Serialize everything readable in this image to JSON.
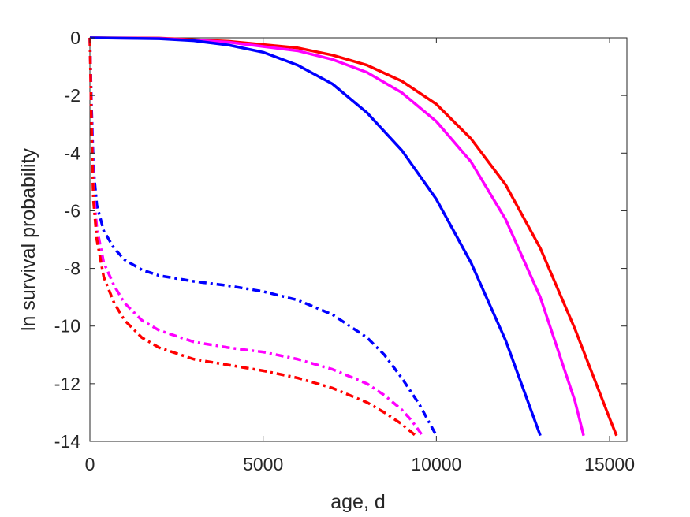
{
  "chart_data": {
    "type": "line",
    "title": "",
    "xlabel": "age, d",
    "ylabel": "ln survival probability",
    "xlim": [
      0,
      15500
    ],
    "ylim": [
      -14,
      0
    ],
    "xticks": [
      0,
      5000,
      10000,
      15000
    ],
    "xtick_labels": [
      "0",
      "5000",
      "10000",
      "15000"
    ],
    "yticks": [
      0,
      -2,
      -4,
      -6,
      -8,
      -10,
      -12,
      -14
    ],
    "ytick_labels": [
      "0",
      "-2",
      "-4",
      "-6",
      "-8",
      "-10",
      "-12",
      "-14"
    ],
    "grid": false,
    "legend": "none",
    "series": [
      {
        "color": "#ff0000",
        "style": "solid",
        "x": [
          0,
          2000,
          4000,
          6000,
          7000,
          8000,
          9000,
          10000,
          11000,
          12000,
          13000,
          14000,
          15000,
          15200
        ],
        "y": [
          0,
          -0.01,
          -0.12,
          -0.35,
          -0.6,
          -0.95,
          -1.5,
          -2.3,
          -3.5,
          -5.1,
          -7.3,
          -10.1,
          -13.2,
          -13.8
        ]
      },
      {
        "color": "#ff00ff",
        "style": "solid",
        "x": [
          0,
          2000,
          4000,
          6000,
          7000,
          8000,
          9000,
          10000,
          11000,
          12000,
          13000,
          14000,
          14250
        ],
        "y": [
          0,
          -0.02,
          -0.15,
          -0.45,
          -0.75,
          -1.2,
          -1.9,
          -2.9,
          -4.3,
          -6.3,
          -9.0,
          -12.6,
          -13.8
        ]
      },
      {
        "color": "#0000ff",
        "style": "solid",
        "x": [
          0,
          2000,
          3000,
          4000,
          5000,
          6000,
          7000,
          8000,
          9000,
          10000,
          11000,
          12000,
          13000
        ],
        "y": [
          0,
          -0.03,
          -0.1,
          -0.25,
          -0.5,
          -0.95,
          -1.6,
          -2.6,
          -3.9,
          -5.6,
          -7.8,
          -10.5,
          -13.8
        ]
      },
      {
        "color": "#0000ff",
        "style": "dashdot",
        "x": [
          0,
          50,
          100,
          200,
          400,
          700,
          1000,
          1500,
          2000,
          2500,
          3000,
          4000,
          5000,
          6000,
          7000,
          8000,
          8500,
          9000,
          9500,
          10000
        ],
        "y": [
          0,
          -2.5,
          -4.5,
          -5.8,
          -6.7,
          -7.3,
          -7.7,
          -8.05,
          -8.25,
          -8.35,
          -8.45,
          -8.6,
          -8.8,
          -9.1,
          -9.6,
          -10.4,
          -11.0,
          -11.8,
          -12.7,
          -13.8
        ]
      },
      {
        "color": "#ff00ff",
        "style": "dashdot",
        "x": [
          0,
          50,
          100,
          200,
          400,
          700,
          1000,
          1500,
          2000,
          3000,
          4000,
          5000,
          6000,
          7000,
          8000,
          8500,
          9000,
          9300,
          9600
        ],
        "y": [
          0,
          -3.0,
          -5.2,
          -6.6,
          -7.8,
          -8.6,
          -9.2,
          -9.8,
          -10.15,
          -10.55,
          -10.75,
          -10.9,
          -11.15,
          -11.5,
          -12.0,
          -12.4,
          -12.9,
          -13.3,
          -13.8
        ]
      },
      {
        "color": "#ff0000",
        "style": "dashdot",
        "x": [
          0,
          50,
          100,
          200,
          400,
          700,
          1000,
          1500,
          2000,
          3000,
          4000,
          5000,
          6000,
          7000,
          8000,
          8500,
          9000,
          9400
        ],
        "y": [
          0,
          -3.3,
          -5.6,
          -7.0,
          -8.3,
          -9.2,
          -9.8,
          -10.4,
          -10.75,
          -11.15,
          -11.35,
          -11.55,
          -11.8,
          -12.15,
          -12.65,
          -13.0,
          -13.4,
          -13.8
        ]
      }
    ]
  }
}
